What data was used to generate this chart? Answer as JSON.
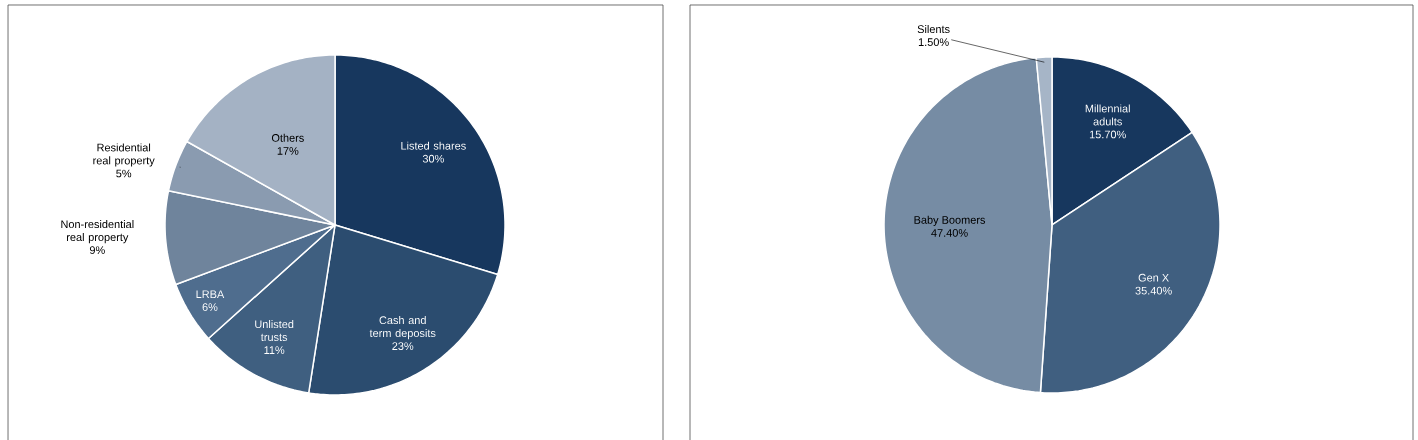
{
  "chart_data": [
    {
      "type": "pie",
      "categories": [
        "Listed shares",
        "Cash and term deposits",
        "Unlisted trusts",
        "LRBA",
        "Non-residential real property",
        "Residential real property",
        "Others"
      ],
      "values": [
        30,
        23,
        11,
        6,
        9,
        5,
        17
      ],
      "value_labels": [
        "30%",
        "23%",
        "11%",
        "6%",
        "9%",
        "5%",
        "17%"
      ],
      "colors": [
        "#17375e",
        "#2b4c6f",
        "#3f5f80",
        "#4f6d8e",
        "#6f849c",
        "#8a9bb0",
        "#a4b2c4"
      ]
    },
    {
      "type": "pie",
      "categories": [
        "Millennial adults",
        "Gen X",
        "Baby Boomers",
        "Silents"
      ],
      "values": [
        15.7,
        35.4,
        47.4,
        1.5
      ],
      "value_labels": [
        "15.70%",
        "35.40%",
        "47.40%",
        "1.50%"
      ],
      "colors": [
        "#17375e",
        "#405f80",
        "#768ca4",
        "#a6b5c7"
      ]
    }
  ]
}
